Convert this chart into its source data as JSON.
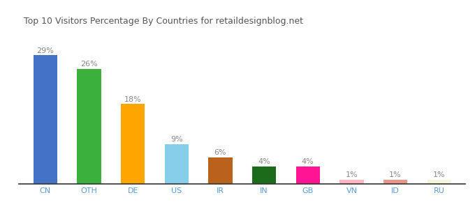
{
  "categories": [
    "CN",
    "OTH",
    "DE",
    "US",
    "IR",
    "IN",
    "GB",
    "VN",
    "ID",
    "RU"
  ],
  "values": [
    29,
    26,
    18,
    9,
    6,
    4,
    4,
    1,
    1,
    1
  ],
  "bar_colors": [
    "#4472C4",
    "#3CB03C",
    "#FFA500",
    "#87CEEB",
    "#B8621B",
    "#1B6B1B",
    "#FF1493",
    "#FFB6C1",
    "#E8968A",
    "#F5F5DC"
  ],
  "title": "Top 10 Visitors Percentage By Countries for retaildesignblog.net",
  "title_fontsize": 9,
  "ylim": [
    0,
    33
  ],
  "label_fontsize": 8,
  "tick_fontsize": 8,
  "background_color": "#ffffff",
  "bar_width": 0.55,
  "label_color": "#888888",
  "tick_color": "#5B9BD5",
  "bottom_spine_color": "#333333"
}
